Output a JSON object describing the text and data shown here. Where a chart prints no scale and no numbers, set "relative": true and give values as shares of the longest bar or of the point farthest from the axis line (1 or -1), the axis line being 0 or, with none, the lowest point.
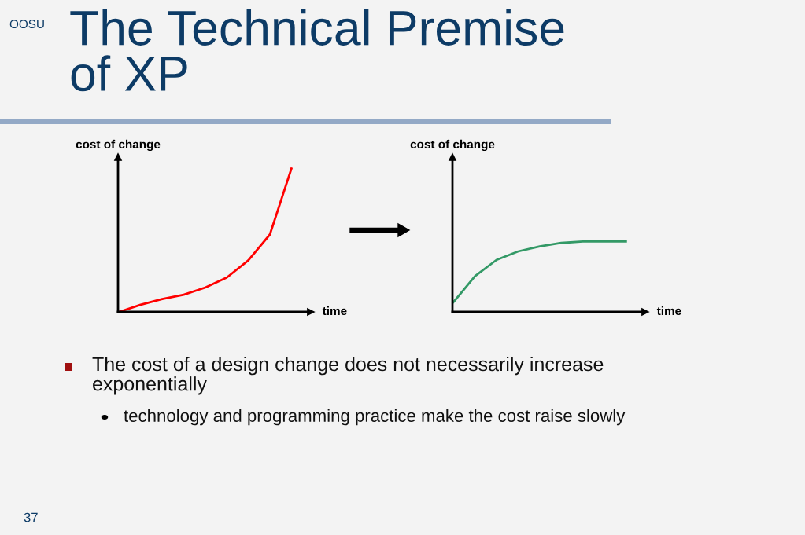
{
  "chart_data": [
    {
      "type": "line",
      "title": "The Technical Premise of XP",
      "xlabel": "time",
      "ylabel": "cost of change",
      "relative": true,
      "grid": false,
      "marker": "none",
      "line_style": "solid",
      "categories": [
        null,
        null,
        null,
        null,
        null,
        null,
        null,
        null,
        null
      ],
      "series": [
        {
          "color": "#ff0000",
          "values": [
            0,
            0.05,
            0.09,
            0.12,
            0.17,
            0.24,
            0.36,
            0.54,
            1.0
          ]
        }
      ],
      "annotations": [
        "OOSU",
        "The cost of a design change does not necessarily increase exponentially",
        "technology and programming practice make the cost raise slowly",
        "37"
      ]
    },
    {
      "type": "line",
      "xlabel": "time",
      "ylabel": "cost of change",
      "relative": true,
      "grid": false,
      "marker": "none",
      "line_style": "solid",
      "categories": [
        null,
        null,
        null,
        null,
        null,
        null,
        null,
        null,
        null
      ],
      "series": [
        {
          "color": "#339966",
          "values": [
            0.14,
            0.51,
            0.74,
            0.86,
            0.93,
            0.98,
            1.0,
            1.0,
            1.0
          ]
        }
      ]
    }
  ]
}
